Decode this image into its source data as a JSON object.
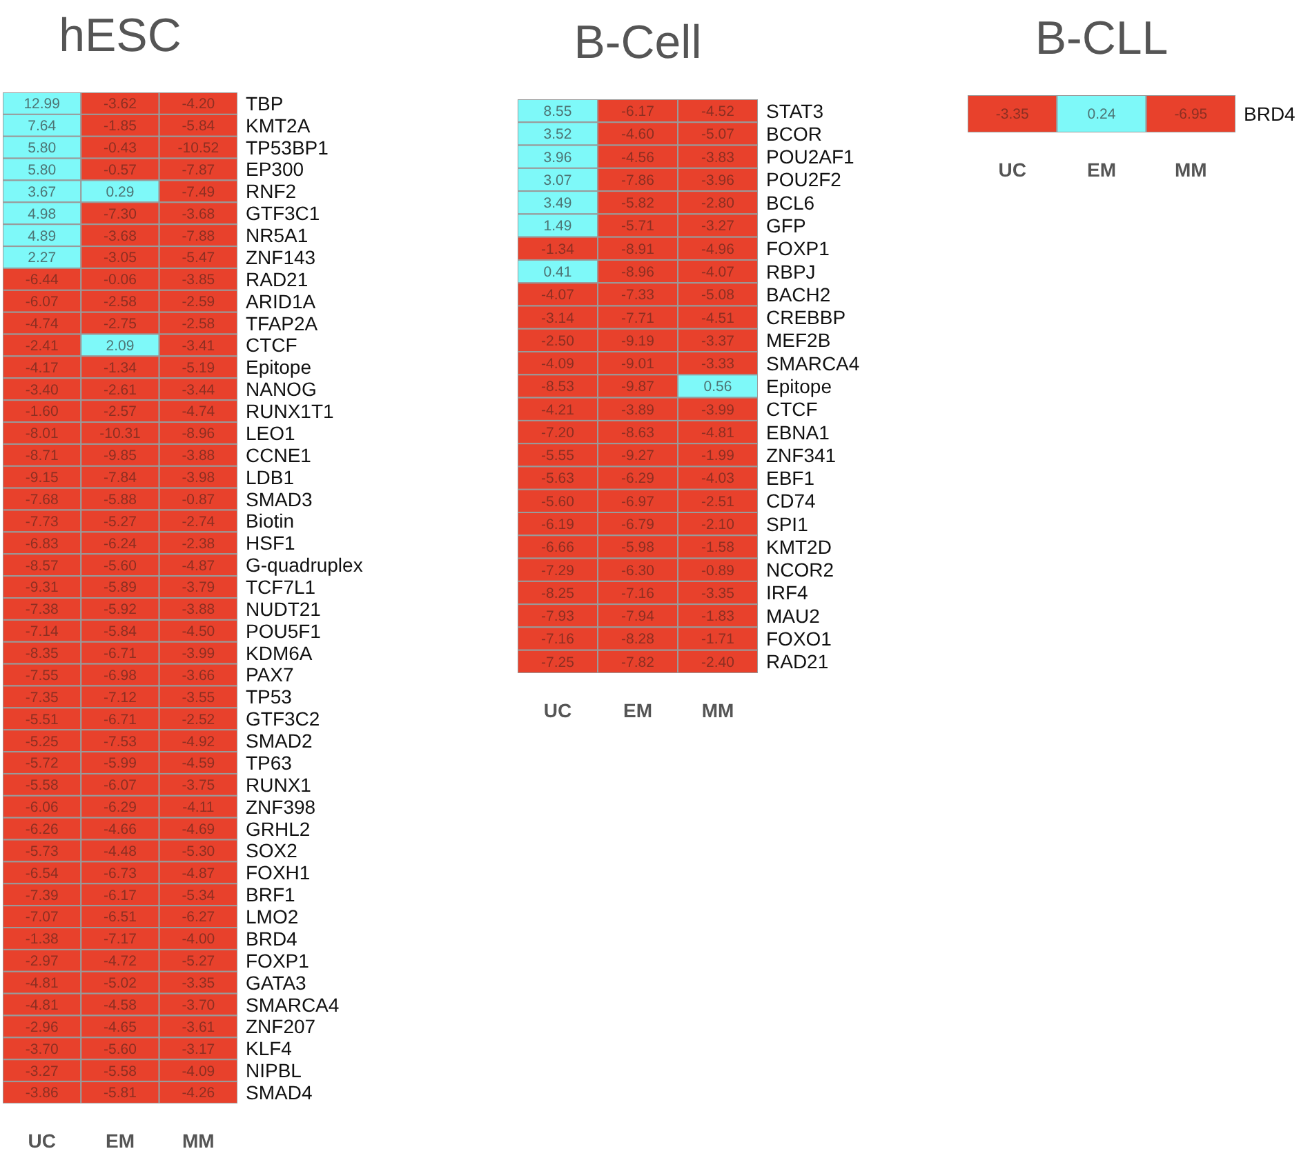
{
  "chart_data": [
    {
      "type": "heatmap",
      "title": "hESC",
      "categories": [
        "UC",
        "EM",
        "MM"
      ],
      "colors": [
        "#e8412c",
        "#7ef9f9"
      ],
      "y_categories": [
        "TBP",
        "KMT2A",
        "TP53BP1",
        "EP300",
        "RNF2",
        "GTF3C1",
        "NR5A1",
        "ZNF143",
        "RAD21",
        "ARID1A",
        "TFAP2A",
        "CTCF",
        "Epitope",
        "NANOG",
        "RUNX1T1",
        "LEO1",
        "CCNE1",
        "LDB1",
        "SMAD3",
        "Biotin",
        "HSF1",
        "G-quadruplex",
        "TCF7L1",
        "NUDT21",
        "POU5F1",
        "KDM6A",
        "PAX7",
        "TP53",
        "GTF3C2",
        "SMAD2",
        "TP63",
        "RUNX1",
        "ZNF398",
        "GRHL2",
        "SOX2",
        "FOXH1",
        "BRF1",
        "LMO2",
        "BRD4",
        "FOXP1",
        "GATA3",
        "SMARCA4",
        "ZNF207",
        "KLF4",
        "NIPBL",
        "SMAD4"
      ],
      "cells": [
        [
          12.99,
          -3.62,
          -4.2
        ],
        [
          7.64,
          -1.85,
          -5.84
        ],
        [
          5.8,
          -0.43,
          -10.52
        ],
        [
          5.8,
          -0.57,
          -7.87
        ],
        [
          3.67,
          0.29,
          -7.49
        ],
        [
          4.98,
          -7.3,
          -3.68
        ],
        [
          4.89,
          -3.68,
          -7.88
        ],
        [
          2.27,
          -3.05,
          -5.47
        ],
        [
          -6.44,
          -0.06,
          -3.85
        ],
        [
          -6.07,
          -2.58,
          -2.59
        ],
        [
          -4.74,
          -2.75,
          -2.58
        ],
        [
          -2.41,
          2.09,
          -3.41
        ],
        [
          -4.17,
          -1.34,
          -5.19
        ],
        [
          -3.4,
          -2.61,
          -3.44
        ],
        [
          -1.6,
          -2.57,
          -4.74
        ],
        [
          -8.01,
          -10.31,
          -8.96
        ],
        [
          -8.71,
          -9.85,
          -3.88
        ],
        [
          -9.15,
          -7.84,
          -3.98
        ],
        [
          -7.68,
          -5.88,
          -0.87
        ],
        [
          -7.73,
          -5.27,
          -2.74
        ],
        [
          -6.83,
          -6.24,
          -2.38
        ],
        [
          -8.57,
          -5.6,
          -4.87
        ],
        [
          -9.31,
          -5.89,
          -3.79
        ],
        [
          -7.38,
          -5.92,
          -3.88
        ],
        [
          -7.14,
          -5.84,
          -4.5
        ],
        [
          -8.35,
          -6.71,
          -3.99
        ],
        [
          -7.55,
          -6.98,
          -3.66
        ],
        [
          -7.35,
          -7.12,
          -3.55
        ],
        [
          -5.51,
          -6.71,
          -2.52
        ],
        [
          -5.25,
          -7.53,
          -4.92
        ],
        [
          -5.72,
          -5.99,
          -4.59
        ],
        [
          -5.58,
          -6.07,
          -3.75
        ],
        [
          -6.06,
          -6.29,
          -4.11
        ],
        [
          -6.26,
          -4.66,
          -4.69
        ],
        [
          -5.73,
          -4.48,
          -5.3
        ],
        [
          -6.54,
          -6.73,
          -4.87
        ],
        [
          -7.39,
          -6.17,
          -5.34
        ],
        [
          -7.07,
          -6.51,
          -6.27
        ],
        [
          -1.38,
          -7.17,
          -4.0
        ],
        [
          -2.97,
          -4.72,
          -5.27
        ],
        [
          -4.81,
          -5.02,
          -3.35
        ],
        [
          -4.81,
          -4.58,
          -3.7
        ],
        [
          -2.96,
          -4.65,
          -3.61
        ],
        [
          -3.7,
          -5.6,
          -3.17
        ],
        [
          -3.27,
          -5.58,
          -4.09
        ],
        [
          -3.86,
          -5.81,
          -4.26
        ]
      ],
      "cell_labels": [
        [
          "12.99",
          "-3.62",
          "-4.20"
        ],
        [
          "7.64",
          "-1.85",
          "-5.84"
        ],
        [
          "5.80",
          "-0.43",
          "-10.52"
        ],
        [
          "5.80",
          "-0.57",
          "-7.87"
        ],
        [
          "3.67",
          "0.29",
          "-7.49"
        ],
        [
          "4.98",
          "-7.30",
          "-3.68"
        ],
        [
          "4.89",
          "-3.68",
          "-7.88"
        ],
        [
          "2.27",
          "-3.05",
          "-5.47"
        ],
        [
          "-6.44",
          "-0.06",
          "-3.85"
        ],
        [
          "-6.07",
          "-2.58",
          "-2.59"
        ],
        [
          "-4.74",
          "-2.75",
          "-2.58"
        ],
        [
          "-2.41",
          "2.09",
          "-3.41"
        ],
        [
          "-4.17",
          "-1.34",
          "-5.19"
        ],
        [
          "-3.40",
          "-2.61",
          "-3.44"
        ],
        [
          "-1.60",
          "-2.57",
          "-4.74"
        ],
        [
          "-8.01",
          "-10.31",
          "-8.96"
        ],
        [
          "-8.71",
          "-9.85",
          "-3.88"
        ],
        [
          "-9.15",
          "-7.84",
          "-3.98"
        ],
        [
          "-7.68",
          "-5.88",
          "-0.87"
        ],
        [
          "-7.73",
          "-5.27",
          "-2.74"
        ],
        [
          "-6.83",
          "-6.24",
          "-2.38"
        ],
        [
          "-8.57",
          "-5.60",
          "-4.87"
        ],
        [
          "-9.31",
          "-5.89",
          "-3.79"
        ],
        [
          "-7.38",
          "-5.92",
          "-3.88"
        ],
        [
          "-7.14",
          "-5.84",
          "-4.50"
        ],
        [
          "-8.35",
          "-6.71",
          "-3.99"
        ],
        [
          "-7.55",
          "-6.98",
          "-3.66"
        ],
        [
          "-7.35",
          "-7.12",
          "-3.55"
        ],
        [
          "-5.51",
          "-6.71",
          "-2.52"
        ],
        [
          "-5.25",
          "-7.53",
          "-4.92"
        ],
        [
          "-5.72",
          "-5.99",
          "-4.59"
        ],
        [
          "-5.58",
          "-6.07",
          "-3.75"
        ],
        [
          "-6.06",
          "-6.29",
          "-4.11"
        ],
        [
          "-6.26",
          "-4.66",
          "-4.69"
        ],
        [
          "-5.73",
          "-4.48",
          "-5.30"
        ],
        [
          "-6.54",
          "-6.73",
          "-4.87"
        ],
        [
          "-7.39",
          "-6.17",
          "-5.34"
        ],
        [
          "-7.07",
          "-6.51",
          "-6.27"
        ],
        [
          "-1.38",
          "-7.17",
          "-4.00"
        ],
        [
          "-2.97",
          "-4.72",
          "-5.27"
        ],
        [
          "-4.81",
          "-5.02",
          "-3.35"
        ],
        [
          "-4.81",
          "-4.58",
          "-3.70"
        ],
        [
          "-2.96",
          "-4.65",
          "-3.61"
        ],
        [
          "-3.70",
          "-5.60",
          "-3.17"
        ],
        [
          "-3.27",
          "-5.58",
          "-4.09"
        ],
        [
          "-3.86",
          "-5.81",
          "-4.26"
        ]
      ]
    },
    {
      "type": "heatmap",
      "title": "B-Cell",
      "categories": [
        "UC",
        "EM",
        "MM"
      ],
      "colors": [
        "#e8412c",
        "#7ef9f9"
      ],
      "y_categories": [
        "STAT3",
        "BCOR",
        "POU2AF1",
        "POU2F2",
        "BCL6",
        "GFP",
        "FOXP1",
        "RBPJ",
        "BACH2",
        "CREBBP",
        "MEF2B",
        "SMARCA4",
        "Epitope",
        "CTCF",
        "EBNA1",
        "ZNF341",
        "EBF1",
        "CD74",
        "SPI1",
        "KMT2D",
        "NCOR2",
        "IRF4",
        "MAU2",
        "FOXO1",
        "RAD21"
      ],
      "cells": [
        [
          8.55,
          -6.17,
          -4.52
        ],
        [
          3.52,
          -4.6,
          -5.07
        ],
        [
          3.96,
          -4.56,
          -3.83
        ],
        [
          3.07,
          -7.86,
          -3.96
        ],
        [
          3.49,
          -5.82,
          -2.8
        ],
        [
          1.49,
          -5.71,
          -3.27
        ],
        [
          -1.34,
          -8.91,
          -4.96
        ],
        [
          0.41,
          -8.96,
          -4.07
        ],
        [
          -4.07,
          -7.33,
          -5.08
        ],
        [
          -3.14,
          -7.71,
          -4.51
        ],
        [
          -2.5,
          -9.19,
          -3.37
        ],
        [
          -4.09,
          -9.01,
          -3.33
        ],
        [
          -8.53,
          -9.87,
          0.56
        ],
        [
          -4.21,
          -3.89,
          -3.99
        ],
        [
          -7.2,
          -8.63,
          -4.81
        ],
        [
          -5.55,
          -9.27,
          -1.99
        ],
        [
          -5.63,
          -6.29,
          -4.03
        ],
        [
          -5.6,
          -6.97,
          -2.51
        ],
        [
          -6.19,
          -6.79,
          -2.1
        ],
        [
          -6.66,
          -5.98,
          -1.58
        ],
        [
          -7.29,
          -6.3,
          -0.89
        ],
        [
          -8.25,
          -7.16,
          -3.35
        ],
        [
          -7.93,
          -7.94,
          -1.83
        ],
        [
          -7.16,
          -8.28,
          -1.71
        ],
        [
          -7.25,
          -7.82,
          -2.4
        ]
      ],
      "cell_labels": [
        [
          "8.55",
          "-6.17",
          "-4.52"
        ],
        [
          "3.52",
          "-4.60",
          "-5.07"
        ],
        [
          "3.96",
          "-4.56",
          "-3.83"
        ],
        [
          "3.07",
          "-7.86",
          "-3.96"
        ],
        [
          "3.49",
          "-5.82",
          "-2.80"
        ],
        [
          "1.49",
          "-5.71",
          "-3.27"
        ],
        [
          "-1.34",
          "-8.91",
          "-4.96"
        ],
        [
          "0.41",
          "-8.96",
          "-4.07"
        ],
        [
          "-4.07",
          "-7.33",
          "-5.08"
        ],
        [
          "-3.14",
          "-7.71",
          "-4.51"
        ],
        [
          "-2.50",
          "-9.19",
          "-3.37"
        ],
        [
          "-4.09",
          "-9.01",
          "-3.33"
        ],
        [
          "-8.53",
          "-9.87",
          "0.56"
        ],
        [
          "-4.21",
          "-3.89",
          "-3.99"
        ],
        [
          "-7.20",
          "-8.63",
          "-4.81"
        ],
        [
          "-5.55",
          "-9.27",
          "-1.99"
        ],
        [
          "-5.63",
          "-6.29",
          "-4.03"
        ],
        [
          "-5.60",
          "-6.97",
          "-2.51"
        ],
        [
          "-6.19",
          "-6.79",
          "-2.10"
        ],
        [
          "-6.66",
          "-5.98",
          "-1.58"
        ],
        [
          "-7.29",
          "-6.30",
          "-0.89"
        ],
        [
          "-8.25",
          "-7.16",
          "-3.35"
        ],
        [
          "-7.93",
          "-7.94",
          "-1.83"
        ],
        [
          "-7.16",
          "-8.28",
          "-1.71"
        ],
        [
          "-7.25",
          "-7.82",
          "-2.40"
        ]
      ]
    },
    {
      "type": "heatmap",
      "title": "B-CLL",
      "categories": [
        "UC",
        "EM",
        "MM"
      ],
      "colors": [
        "#e8412c",
        "#7ef9f9"
      ],
      "y_categories": [
        "BRD4"
      ],
      "cells": [
        [
          -3.35,
          0.24,
          -6.95
        ]
      ],
      "cell_labels": [
        [
          "-3.35",
          "0.24",
          "-6.95"
        ]
      ]
    }
  ]
}
